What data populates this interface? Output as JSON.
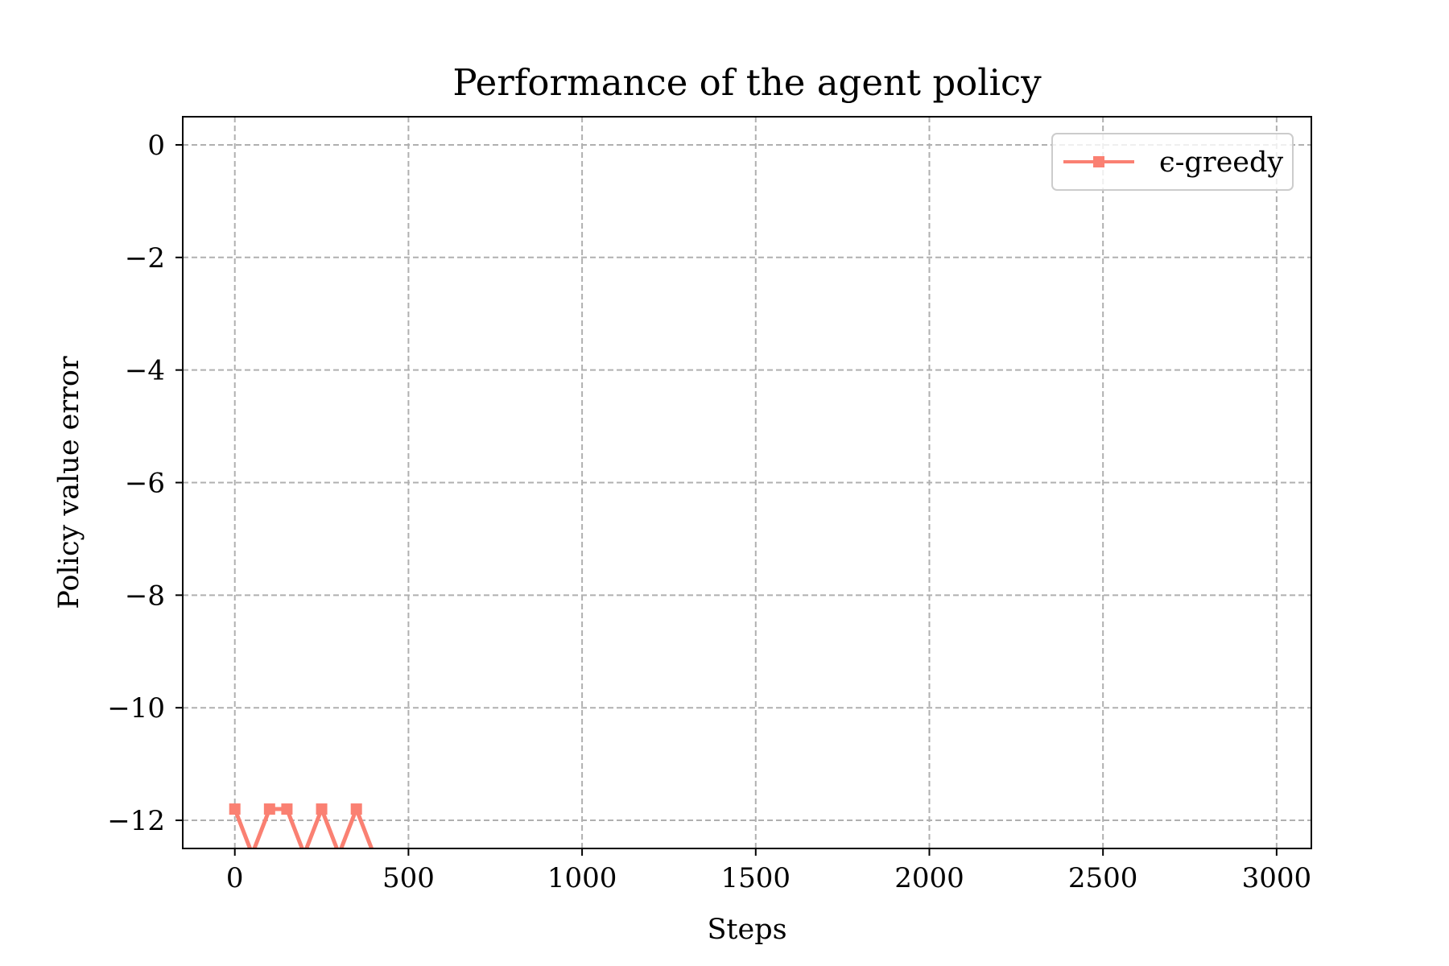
{
  "chart_data": {
    "type": "line",
    "title": "Performance of the agent policy",
    "xlabel": "Steps",
    "ylabel": "Policy value error",
    "xlim": [
      -150,
      3100
    ],
    "ylim": [
      -12.5,
      0.5
    ],
    "xticks": [
      0,
      500,
      1000,
      1500,
      2000,
      2500,
      3000
    ],
    "xtick_labels": [
      "0",
      "500",
      "1000",
      "1500",
      "2000",
      "2500",
      "3000"
    ],
    "yticks": [
      0,
      -2,
      -4,
      -6,
      -8,
      -10,
      -12
    ],
    "ytick_labels": [
      "0",
      "−2",
      "−4",
      "−6",
      "−8",
      "−10",
      "−12"
    ],
    "grid": true,
    "grid_style": "dashed",
    "legend_position": "top-right",
    "series": [
      {
        "name": "ϵ-greedy",
        "color": "#fa8072",
        "marker": "square",
        "x": [
          0,
          50,
          100,
          150,
          200,
          250,
          300,
          350,
          400
        ],
        "y": [
          -11.8,
          -12.6,
          -11.8,
          -11.8,
          -12.6,
          -11.8,
          -12.6,
          -11.8,
          -12.6
        ],
        "marker_visible": [
          true,
          false,
          true,
          true,
          false,
          true,
          false,
          true,
          false
        ]
      }
    ]
  }
}
